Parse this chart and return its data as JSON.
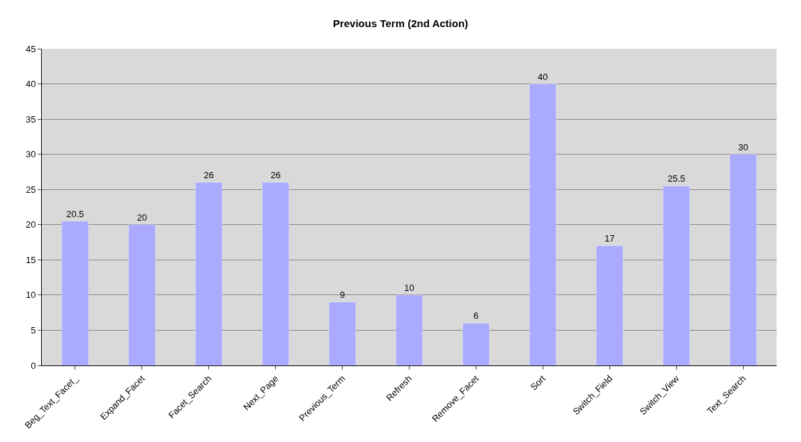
{
  "chart_data": {
    "type": "bar",
    "title": "Previous Term (2nd Action)",
    "categories": [
      "Beg_Text_Facet_",
      "Expand_Facet",
      "Facet_Search",
      "Next_Page",
      "Previous_Term",
      "Refresh",
      "Remove_Facet",
      "Sort",
      "Switch_Field",
      "Switch_View",
      "Text_Search"
    ],
    "values": [
      20.5,
      20,
      26,
      26,
      9,
      10,
      6,
      40,
      17,
      25.5,
      30
    ],
    "color": "#aaaaff",
    "ylim": [
      0,
      45
    ],
    "yticks": [
      0,
      5,
      10,
      15,
      20,
      25,
      30,
      35,
      40,
      45
    ],
    "grid": "y",
    "data_labels": true,
    "legend": false
  }
}
